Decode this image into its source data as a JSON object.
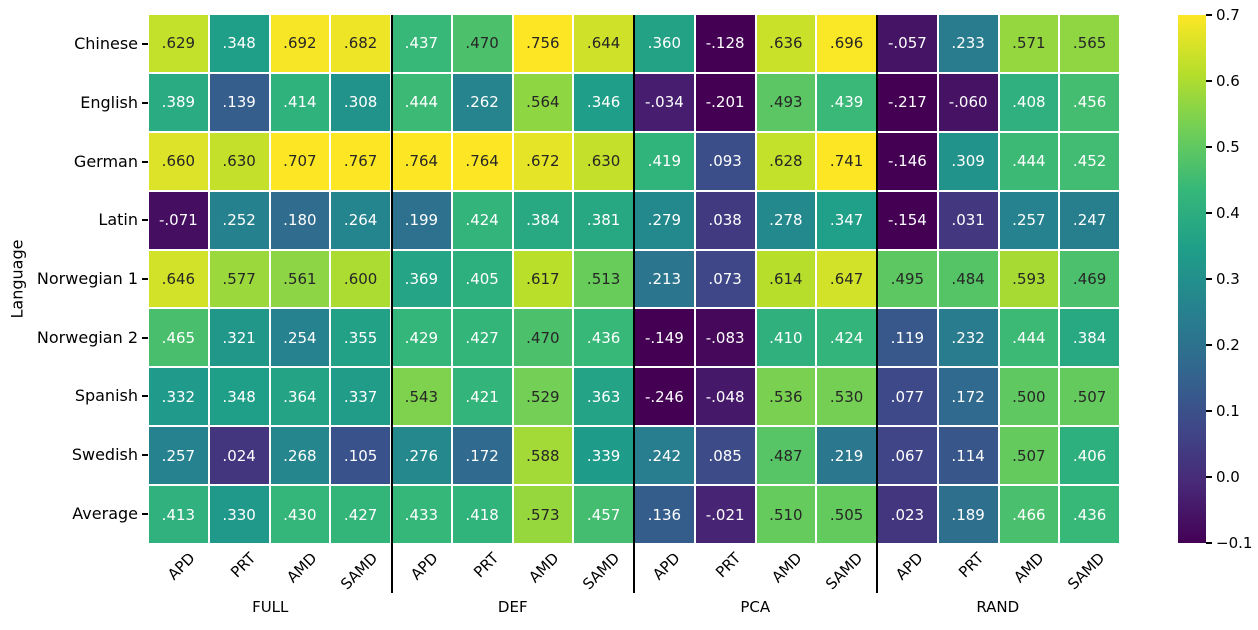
{
  "chart_data": {
    "type": "heatmap",
    "title": "",
    "ylabel": "Language",
    "rows": [
      "Chinese",
      "English",
      "German",
      "Latin",
      "Norwegian 1",
      "Norwegian 2",
      "Spanish",
      "Swedish",
      "Average"
    ],
    "column_groups": [
      {
        "label": "FULL",
        "columns": [
          "APD",
          "PRT",
          "AMD",
          "SAMD"
        ]
      },
      {
        "label": "DEF",
        "columns": [
          "APD",
          "PRT",
          "AMD",
          "SAMD"
        ]
      },
      {
        "label": "PCA",
        "columns": [
          "APD",
          "PRT",
          "AMD",
          "SAMD"
        ]
      },
      {
        "label": "RAND",
        "columns": [
          "APD",
          "PRT",
          "AMD",
          "SAMD"
        ]
      }
    ],
    "values": [
      [
        ".629",
        ".348",
        ".692",
        ".682",
        ".437",
        ".470",
        ".756",
        ".644",
        ".360",
        "-.128",
        ".636",
        ".696",
        "-.057",
        ".233",
        ".571",
        ".565"
      ],
      [
        ".389",
        ".139",
        ".414",
        ".308",
        ".444",
        ".262",
        ".564",
        ".346",
        "-.034",
        "-.201",
        ".493",
        ".439",
        "-.217",
        "-.060",
        ".408",
        ".456"
      ],
      [
        ".660",
        ".630",
        ".707",
        ".767",
        ".764",
        ".764",
        ".672",
        ".630",
        ".419",
        ".093",
        ".628",
        ".741",
        "-.146",
        ".309",
        ".444",
        ".452"
      ],
      [
        "-.071",
        ".252",
        ".180",
        ".264",
        ".199",
        ".424",
        ".384",
        ".381",
        ".279",
        ".038",
        ".278",
        ".347",
        "-.154",
        ".031",
        ".257",
        ".247"
      ],
      [
        ".646",
        ".577",
        ".561",
        ".600",
        ".369",
        ".405",
        ".617",
        ".513",
        ".213",
        ".073",
        ".614",
        ".647",
        ".495",
        ".484",
        ".593",
        ".469"
      ],
      [
        ".465",
        ".321",
        ".254",
        ".355",
        ".429",
        ".427",
        ".470",
        ".436",
        "-.149",
        "-.083",
        ".410",
        ".424",
        ".119",
        ".232",
        ".444",
        ".384"
      ],
      [
        ".332",
        ".348",
        ".364",
        ".337",
        ".543",
        ".421",
        ".529",
        ".363",
        "-.246",
        "-.048",
        ".536",
        ".530",
        ".077",
        ".172",
        ".500",
        ".507"
      ],
      [
        ".257",
        ".024",
        ".268",
        ".105",
        ".276",
        ".172",
        ".588",
        ".339",
        ".242",
        ".085",
        ".487",
        ".219",
        ".067",
        ".114",
        ".507",
        ".406"
      ],
      [
        ".413",
        ".330",
        ".430",
        ".427",
        ".433",
        ".418",
        ".573",
        ".457",
        ".136",
        "-.021",
        ".510",
        ".505",
        ".023",
        ".189",
        ".466",
        ".436"
      ]
    ],
    "colorbar": {
      "vmin": -0.1,
      "vmax": 0.7,
      "ticks": [
        "0.7",
        "0.6",
        "0.5",
        "0.4",
        "0.3",
        "0.2",
        "0.1",
        "0.0",
        "−0.1"
      ]
    },
    "colormap": {
      "name": "viridis",
      "stops": [
        "#440154",
        "#482878",
        "#3e4989",
        "#31688e",
        "#26828e",
        "#1f9e89",
        "#35b779",
        "#6ece58",
        "#b5de2b",
        "#fde725"
      ]
    },
    "annotation_text_colors": {
      "dark": "#262626",
      "light": "#ffffff"
    },
    "separator_color": "#000000",
    "grid_gap_color": "#ffffff",
    "legend_position": "right-colorbar",
    "grid": "off"
  }
}
